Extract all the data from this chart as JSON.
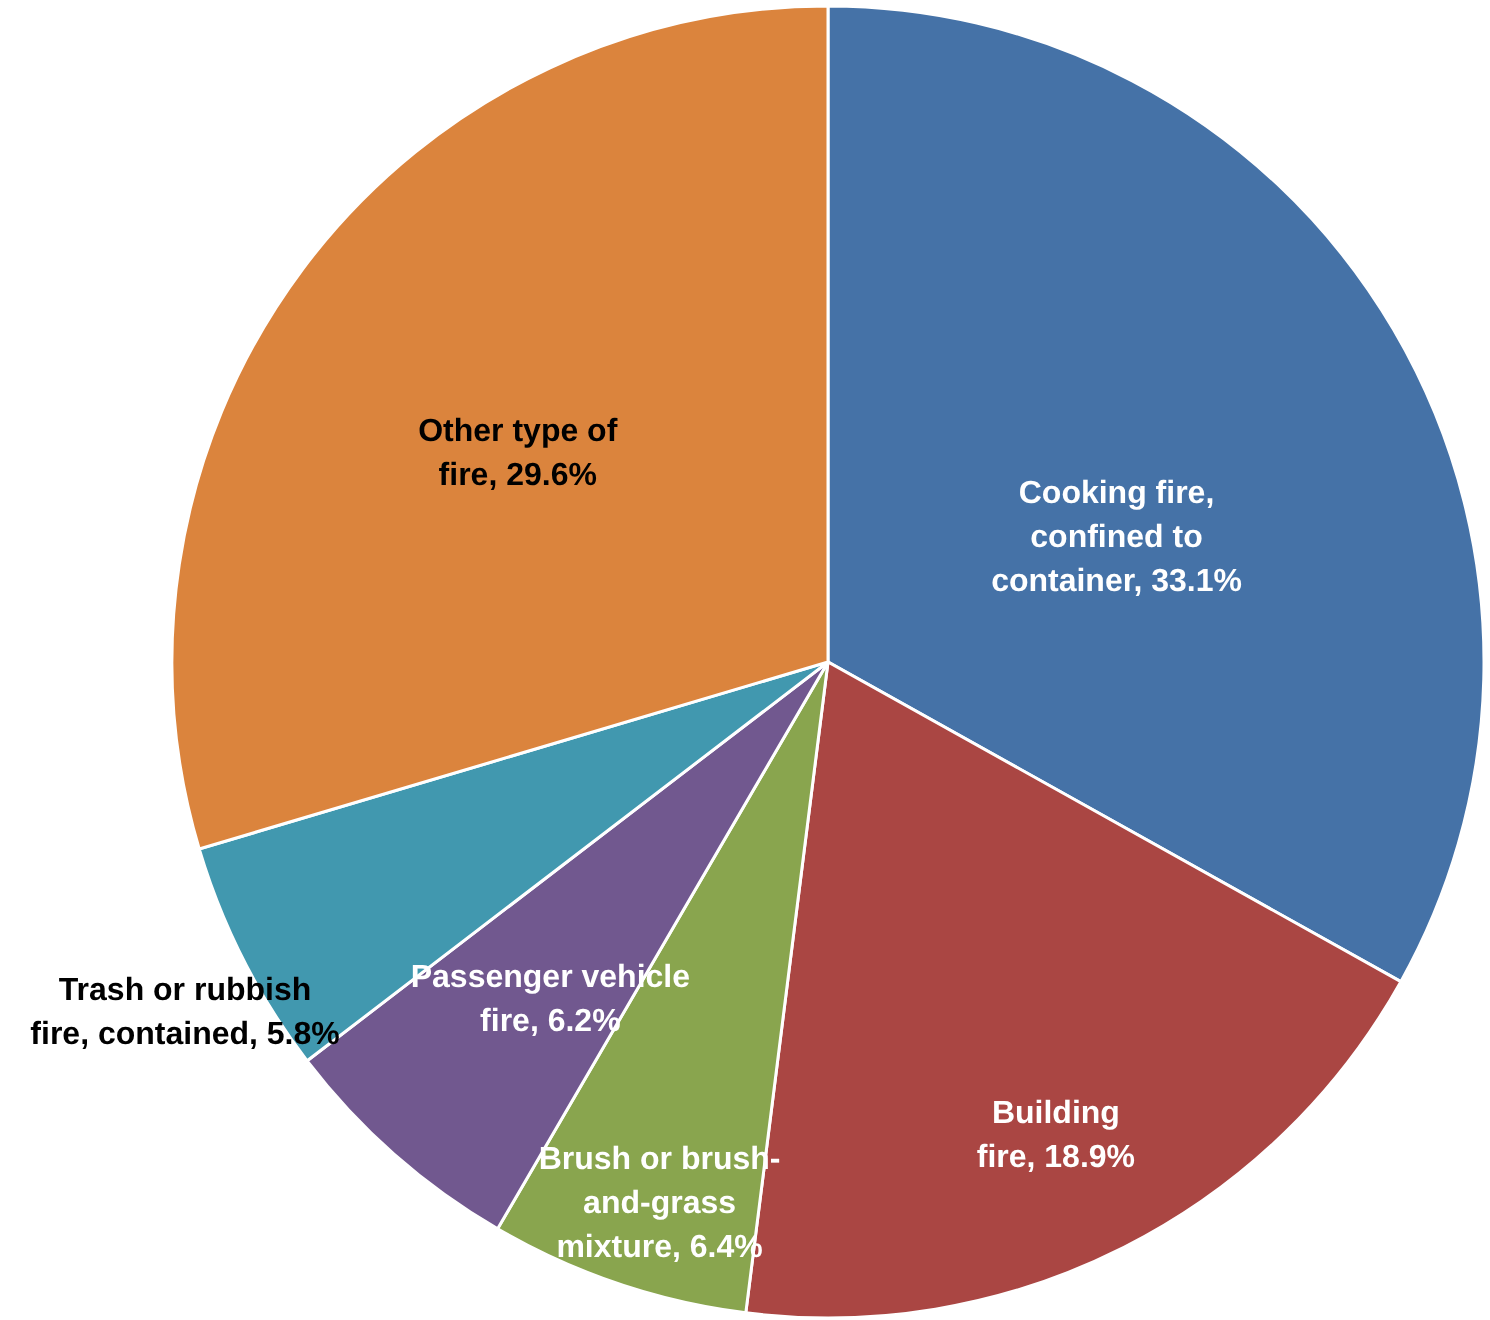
{
  "chart_data": {
    "type": "pie",
    "categories": [
      "Cooking fire, confined to container",
      "Building fire",
      "Brush or brush-and-grass mixture",
      "Passenger vehicle fire",
      "Trash or rubbish fire, contained",
      "Other type of fire"
    ],
    "values": [
      33.1,
      18.9,
      6.4,
      6.2,
      5.8,
      29.6
    ],
    "value_labels": [
      "33.1%",
      "18.9%",
      "6.4%",
      "6.2%",
      "5.8%",
      "29.6%"
    ],
    "colors": [
      "#4572a7",
      "#aa4643",
      "#89a54e",
      "#71588f",
      "#4198af",
      "#db843d"
    ]
  }
}
